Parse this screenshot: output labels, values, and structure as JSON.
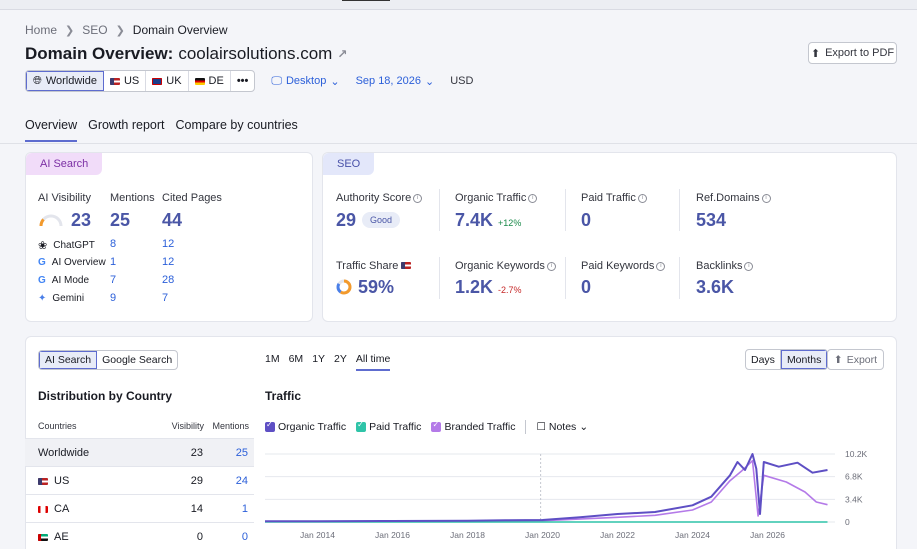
{
  "breadcrumb": [
    "Home",
    "SEO",
    "Domain Overview"
  ],
  "title": {
    "prefix": "Domain Overview:",
    "domain": "coolairsolutions.com"
  },
  "export_pdf": "Export to PDF",
  "locations": [
    {
      "label": "Worldwide",
      "flag": "",
      "active": true
    },
    {
      "label": "US",
      "flag": "us"
    },
    {
      "label": "UK",
      "flag": "uk"
    },
    {
      "label": "DE",
      "flag": "de"
    },
    {
      "label": "•••",
      "flag": ""
    }
  ],
  "device": "Desktop",
  "date": "Sep 18, 2026",
  "currency": "USD",
  "tabs": [
    "Overview",
    "Growth report",
    "Compare by countries"
  ],
  "ai_search": {
    "tag": "AI Search",
    "visibility_label": "AI Visibility",
    "visibility_value": "23",
    "visibility_gauge": 0.23,
    "mentions_label": "Mentions",
    "mentions_value": "25",
    "cited_label": "Cited Pages",
    "cited_value": "44",
    "sources": [
      {
        "name": "ChatGPT",
        "icon": "chatgpt-icon",
        "mentions": "8",
        "cited": "12"
      },
      {
        "name": "AI Overview",
        "icon": "google-icon",
        "mentions": "1",
        "cited": "12"
      },
      {
        "name": "AI Mode",
        "icon": "google-icon",
        "mentions": "7",
        "cited": "28"
      },
      {
        "name": "Gemini",
        "icon": "gemini-icon",
        "mentions": "9",
        "cited": "7"
      }
    ]
  },
  "seo": {
    "tag": "SEO",
    "authority_label": "Authority Score",
    "authority_value": "29",
    "authority_badge": "Good",
    "organic_label": "Organic Traffic",
    "organic_value": "7.4K",
    "organic_delta": "+12%",
    "paid_label": "Paid Traffic",
    "paid_value": "0",
    "refdomains_label": "Ref.Domains",
    "refdomains_value": "534",
    "share_label": "Traffic Share",
    "share_value": "59%",
    "share_fraction": 0.59,
    "keywords_label": "Organic Keywords",
    "keywords_value": "1.2K",
    "keywords_delta": "-2.7%",
    "paid_kw_label": "Paid Keywords",
    "paid_kw_value": "0",
    "backlinks_label": "Backlinks",
    "backlinks_value": "3.6K"
  },
  "distribution": {
    "toggle": [
      "AI Search",
      "Google Search"
    ],
    "title": "Distribution by Country",
    "headers": [
      "Countries",
      "Visibility",
      "Mentions"
    ],
    "rows": [
      {
        "country": "Worldwide",
        "flag": "",
        "visibility": "23",
        "mentions": "25"
      },
      {
        "country": "US",
        "flag": "us",
        "visibility": "29",
        "mentions": "24"
      },
      {
        "country": "CA",
        "flag": "ca",
        "visibility": "14",
        "mentions": "1"
      },
      {
        "country": "AE",
        "flag": "ae",
        "visibility": "0",
        "mentions": "0"
      }
    ]
  },
  "traffic": {
    "ranges": [
      "1M",
      "6M",
      "1Y",
      "2Y",
      "All time"
    ],
    "granularity": [
      "Days",
      "Months"
    ],
    "export": "Export",
    "title": "Traffic",
    "notes": "Notes",
    "colors": {
      "organic": "#5e4fc4",
      "paid": "#2fc4a8",
      "branded": "#b47ae8"
    }
  },
  "chart_data": {
    "type": "line",
    "title": "Traffic",
    "xlabel": "",
    "ylabel": "",
    "x_ticks": [
      "Jan 2014",
      "Jan 2016",
      "Jan 2018",
      "Jan 2020",
      "Jan 2022",
      "Jan 2024",
      "Jan 2026"
    ],
    "y_ticks": [
      "10.2K",
      "6.8K",
      "3.4K",
      "0"
    ],
    "ylim": [
      0,
      10200
    ],
    "xlim": [
      2012.6,
      2027.8
    ],
    "series": [
      {
        "name": "Organic Traffic",
        "points": [
          [
            2012.6,
            100
          ],
          [
            2014,
            120
          ],
          [
            2016,
            150
          ],
          [
            2018,
            200
          ],
          [
            2019,
            250
          ],
          [
            2020,
            300
          ],
          [
            2021,
            700
          ],
          [
            2022,
            1200
          ],
          [
            2023,
            1500
          ],
          [
            2024,
            2500
          ],
          [
            2024.5,
            3800
          ],
          [
            2025,
            7000
          ],
          [
            2025.2,
            9000
          ],
          [
            2025.4,
            7800
          ],
          [
            2025.6,
            10200
          ],
          [
            2025.7,
            8000
          ],
          [
            2025.8,
            1200
          ],
          [
            2025.9,
            9000
          ],
          [
            2026.3,
            8300
          ],
          [
            2026.8,
            8900
          ],
          [
            2027.2,
            7400
          ],
          [
            2027.6,
            7800
          ]
        ]
      },
      {
        "name": "Paid Traffic",
        "points": [
          [
            2012.6,
            0
          ],
          [
            2027.6,
            0
          ]
        ]
      },
      {
        "name": "Branded Traffic",
        "points": [
          [
            2012.6,
            60
          ],
          [
            2018,
            120
          ],
          [
            2020,
            200
          ],
          [
            2022,
            700
          ],
          [
            2023,
            1000
          ],
          [
            2024,
            1800
          ],
          [
            2024.5,
            3000
          ],
          [
            2025,
            6200
          ],
          [
            2025.3,
            7600
          ],
          [
            2025.6,
            9200
          ],
          [
            2025.75,
            900
          ],
          [
            2025.9,
            7000
          ],
          [
            2026.5,
            6000
          ],
          [
            2027,
            4500
          ],
          [
            2027.3,
            3000
          ],
          [
            2027.6,
            2600
          ]
        ]
      }
    ]
  }
}
